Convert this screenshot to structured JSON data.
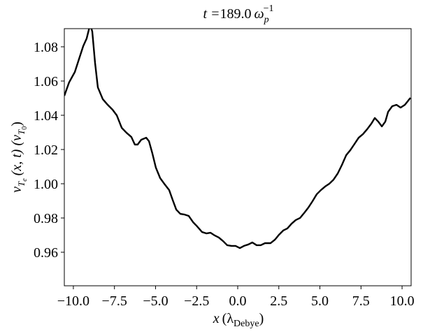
{
  "chart_data": {
    "type": "line",
    "title": [
      "t =",
      "189.0",
      "ω",
      "p",
      "−1"
    ],
    "xlabel": [
      "x",
      "(λ",
      "Debye",
      ")"
    ],
    "ylabel": [
      "v",
      "T",
      "e",
      "(x, t)  (v",
      "T",
      "0",
      ")"
    ],
    "x": [
      -10.55,
      -10.26,
      -9.91,
      -9.62,
      -9.4,
      -9.19,
      -8.98,
      -8.85,
      -8.68,
      -8.51,
      -8.21,
      -7.91,
      -7.62,
      -7.36,
      -7.06,
      -6.77,
      -6.47,
      -6.26,
      -6.09,
      -5.87,
      -5.57,
      -5.4,
      -5.19,
      -4.98,
      -4.72,
      -4.47,
      -4.17,
      -3.96,
      -3.74,
      -3.49,
      -3.23,
      -2.98,
      -2.72,
      -2.47,
      -2.17,
      -1.91,
      -1.66,
      -1.4,
      -1.15,
      -0.89,
      -0.64,
      -0.38,
      -0.13,
      0.13,
      0.38,
      0.64,
      0.89,
      1.15,
      1.4,
      1.66,
      2.0,
      2.26,
      2.51,
      2.77,
      3.02,
      3.28,
      3.53,
      3.79,
      4.04,
      4.3,
      4.55,
      4.81,
      5.06,
      5.32,
      5.57,
      5.83,
      6.09,
      6.34,
      6.6,
      6.85,
      7.11,
      7.36,
      7.62,
      7.87,
      8.13,
      8.34,
      8.55,
      8.77,
      8.98,
      9.15,
      9.4,
      9.66,
      9.91,
      10.17,
      10.51
    ],
    "series": [
      {
        "color": "#000000",
        "values": [
          1.0514,
          1.0592,
          1.0653,
          1.0739,
          1.0804,
          1.0849,
          1.093,
          1.089,
          1.0706,
          1.0563,
          1.0494,
          1.0461,
          1.0433,
          1.04,
          1.0327,
          1.0298,
          1.0273,
          1.0229,
          1.0229,
          1.0257,
          1.0269,
          1.0249,
          1.0176,
          1.0094,
          1.0033,
          1.0,
          0.9963,
          0.9906,
          0.9849,
          0.9824,
          0.982,
          0.9812,
          0.9776,
          0.9751,
          0.9718,
          0.971,
          0.9714,
          0.9698,
          0.9686,
          0.9665,
          0.9641,
          0.9637,
          0.9637,
          0.9624,
          0.9637,
          0.9645,
          0.9657,
          0.9641,
          0.9641,
          0.9653,
          0.9653,
          0.9673,
          0.9702,
          0.9727,
          0.9739,
          0.9767,
          0.9788,
          0.98,
          0.9829,
          0.9861,
          0.9898,
          0.9939,
          0.9963,
          0.9984,
          1.0,
          1.0024,
          1.0061,
          1.011,
          1.0167,
          1.0196,
          1.0233,
          1.0269,
          1.029,
          1.0318,
          1.0351,
          1.0384,
          1.0363,
          1.0335,
          1.0363,
          1.042,
          1.0453,
          1.0461,
          1.0445,
          1.0461,
          1.0502
        ]
      }
    ],
    "xlim": [
      -10.55,
      10.55
    ],
    "ylim": [
      0.9404,
      1.0906
    ],
    "xticks": [
      {
        "value": -10,
        "label": "−10.0"
      },
      {
        "value": -7.5,
        "label": "−7.5"
      },
      {
        "value": -5,
        "label": "−5.0"
      },
      {
        "value": -2.5,
        "label": "−2.5"
      },
      {
        "value": 0,
        "label": "0.0"
      },
      2.5,
      {
        "value": 5,
        "label": "5.0"
      },
      7.5,
      {
        "value": 10,
        "label": "10.0"
      }
    ],
    "yticks": [
      0.96,
      0.98,
      {
        "value": 1,
        "label": "1.00"
      },
      1.02,
      1.04,
      1.06,
      1.08
    ]
  }
}
